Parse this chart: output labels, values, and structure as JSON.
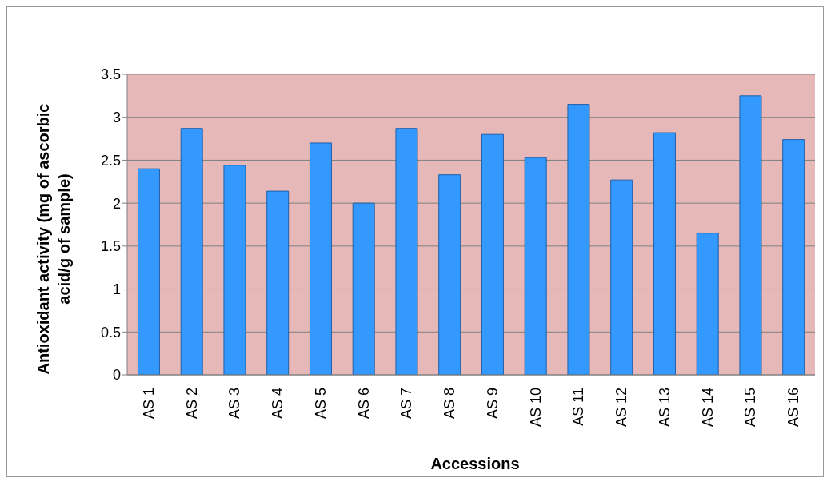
{
  "chart_data": {
    "type": "bar",
    "xlabel": "Accessions",
    "ylabel": "Antioxidant activity (mg of ascorbic acid/g of sample)",
    "categories": [
      "AS 1",
      "AS 2",
      "AS 3",
      "AS 4",
      "AS 5",
      "AS 6",
      "AS 7",
      "AS 8",
      "AS 9",
      "AS 10",
      "AS 11",
      "AS 12",
      "AS 13",
      "AS 14",
      "AS 15",
      "AS 16"
    ],
    "values": [
      2.4,
      2.87,
      2.44,
      2.14,
      2.7,
      2.0,
      2.87,
      2.33,
      2.8,
      2.53,
      3.15,
      2.27,
      2.82,
      1.65,
      3.25,
      2.74
    ],
    "color": "#3399ff",
    "ylim": [
      0,
      3.5
    ],
    "yticks": [
      0,
      0.5,
      1,
      1.5,
      2,
      2.5,
      3,
      3.5
    ],
    "grid": "y"
  }
}
